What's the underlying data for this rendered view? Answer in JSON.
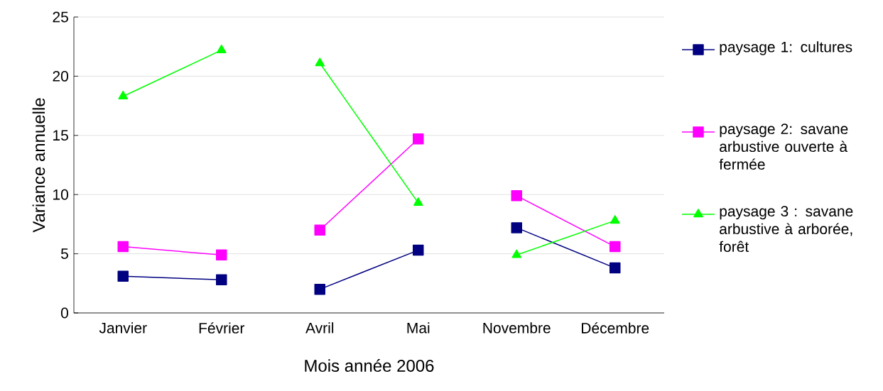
{
  "chart_data": {
    "type": "line",
    "xlabel": "Mois année 2006",
    "ylabel": "Variance annuelle",
    "categories": [
      "Janvier",
      "Février",
      "Avril",
      "Mai",
      "Novembre",
      "Décembre"
    ],
    "ylim": [
      0,
      25
    ],
    "yticks": [
      0,
      5,
      10,
      15,
      20,
      25
    ],
    "grid": "y",
    "legend": "right",
    "line_style": "solid",
    "series": [
      {
        "name": "paysage 1: cultures",
        "color": "#000080",
        "marker": "square",
        "values": [
          3.1,
          2.8,
          null,
          null,
          null,
          null
        ]
      },
      {
        "color": "#000080",
        "marker": "square",
        "values": [
          null,
          null,
          2.0,
          5.3,
          null,
          null
        ]
      },
      {
        "color": "#000080",
        "marker": "square",
        "values": [
          null,
          null,
          null,
          null,
          7.2,
          3.8
        ]
      },
      {
        "name": "paysage 2: savane arbustive ouverte à fermée",
        "color": "#ff00ff",
        "marker": "square",
        "values": [
          5.6,
          4.9,
          null,
          null,
          null,
          null
        ]
      },
      {
        "color": "#ff00ff",
        "marker": "square",
        "values": [
          null,
          null,
          7.0,
          14.7,
          null,
          null
        ]
      },
      {
        "color": "#ff00ff",
        "marker": "square",
        "values": [
          null,
          null,
          null,
          null,
          9.9,
          5.6
        ]
      },
      {
        "name": "paysage 3 : savane arbustive à arborée, forêt",
        "color": "#00ff00",
        "marker": "triangle",
        "values": [
          18.3,
          22.2,
          null,
          null,
          null,
          null
        ]
      },
      {
        "color": "#00ff00",
        "marker": "triangle",
        "values": [
          null,
          null,
          21.1,
          9.3,
          null,
          null
        ]
      },
      {
        "color": "#00ff00",
        "marker": "triangle",
        "values": [
          null,
          null,
          null,
          null,
          4.9,
          7.8
        ]
      }
    ]
  }
}
